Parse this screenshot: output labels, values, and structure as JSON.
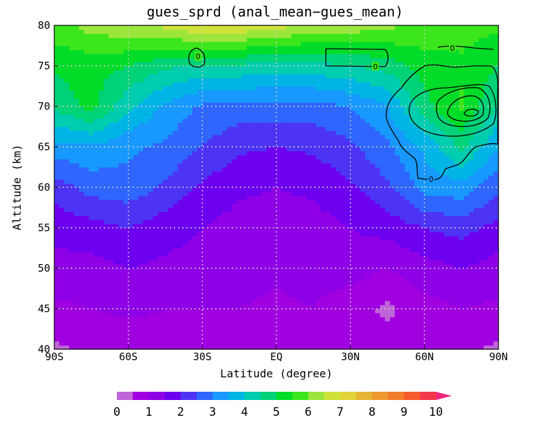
{
  "chart_data": {
    "type": "heatmap",
    "title": "gues_sprd (anal_mean−gues_mean)",
    "xlabel": "Latitude (degree)",
    "ylabel": "Altitude (km)",
    "xlim": [
      -90,
      90
    ],
    "ylim": [
      40,
      80
    ],
    "grid": true,
    "x_ticks": [
      {
        "value": -90,
        "label": "90S"
      },
      {
        "value": -60,
        "label": "60S"
      },
      {
        "value": -30,
        "label": "30S"
      },
      {
        "value": 0,
        "label": "EQ"
      },
      {
        "value": 30,
        "label": "30N"
      },
      {
        "value": 60,
        "label": "60N"
      },
      {
        "value": 90,
        "label": "90N"
      }
    ],
    "y_ticks": [
      {
        "value": 40,
        "label": "40"
      },
      {
        "value": 45,
        "label": "45"
      },
      {
        "value": 50,
        "label": "50"
      },
      {
        "value": 55,
        "label": "55"
      },
      {
        "value": 60,
        "label": "60"
      },
      {
        "value": 65,
        "label": "65"
      },
      {
        "value": 70,
        "label": "70"
      },
      {
        "value": 75,
        "label": "75"
      },
      {
        "value": 80,
        "label": "80"
      }
    ],
    "x": [
      -90,
      -75,
      -60,
      -45,
      -30,
      -15,
      0,
      15,
      30,
      45,
      60,
      75,
      90
    ],
    "y": [
      40,
      45,
      50,
      55,
      60,
      65,
      70,
      75,
      80
    ],
    "z": [
      [
        0.4,
        0.6,
        0.7,
        0.8,
        0.9,
        0.8,
        0.8,
        0.8,
        0.8,
        0.7,
        0.6,
        0.6,
        0.4
      ],
      [
        0.9,
        1.0,
        1.1,
        1.0,
        1.0,
        1.0,
        0.9,
        1.0,
        0.7,
        0.4,
        0.8,
        1.0,
        0.9
      ],
      [
        1.3,
        1.3,
        1.5,
        1.4,
        1.3,
        1.2,
        1.1,
        1.2,
        1.2,
        1.0,
        1.3,
        1.5,
        1.3
      ],
      [
        1.7,
        1.8,
        2.0,
        1.7,
        1.5,
        1.3,
        1.2,
        1.3,
        1.5,
        1.7,
        2.0,
        2.2,
        1.8
      ],
      [
        2.2,
        2.7,
        2.8,
        2.4,
        1.9,
        1.6,
        1.5,
        1.6,
        1.9,
        2.4,
        3.2,
        3.3,
        2.6
      ],
      [
        3.3,
        3.4,
        3.1,
        2.9,
        2.5,
        2.1,
        2.0,
        2.1,
        2.4,
        2.9,
        3.6,
        4.6,
        3.5
      ],
      [
        4.6,
        5.2,
        4.1,
        3.4,
        2.9,
        2.8,
        2.8,
        2.8,
        3.0,
        3.5,
        4.8,
        5.6,
        4.4
      ],
      [
        5.1,
        5.2,
        5.0,
        4.6,
        4.4,
        4.4,
        4.3,
        4.3,
        4.5,
        4.7,
        5.2,
        5.4,
        5.0
      ],
      [
        5.8,
        6.2,
        6.4,
        6.6,
        7.0,
        6.9,
        6.7,
        6.4,
        6.3,
        6.1,
        5.9,
        5.7,
        5.6
      ]
    ],
    "color_levels": [
      0,
      0.5,
      1,
      1.5,
      2,
      2.5,
      3,
      3.5,
      4,
      4.5,
      5,
      5.5,
      6,
      6.5,
      7,
      7.5,
      8,
      8.5,
      9,
      9.5,
      10
    ],
    "colors": [
      "#c065d8",
      "#a000e0",
      "#8e00e6",
      "#6e00f0",
      "#4d34f4",
      "#2e66ff",
      "#1899ff",
      "#00b4e6",
      "#00ccb0",
      "#00d278",
      "#00dc28",
      "#3ce61c",
      "#9ce63c",
      "#cfe23a",
      "#e2d43a",
      "#e6b434",
      "#ee9830",
      "#f27c2a",
      "#f55a2c",
      "#f4384c",
      "#f0287a"
    ],
    "colorbar_labels": [
      "0",
      "1",
      "2",
      "3",
      "4",
      "5",
      "6",
      "7",
      "8",
      "9",
      "10"
    ],
    "contour_labels": [
      "0",
      "0",
      "0",
      "0"
    ]
  }
}
